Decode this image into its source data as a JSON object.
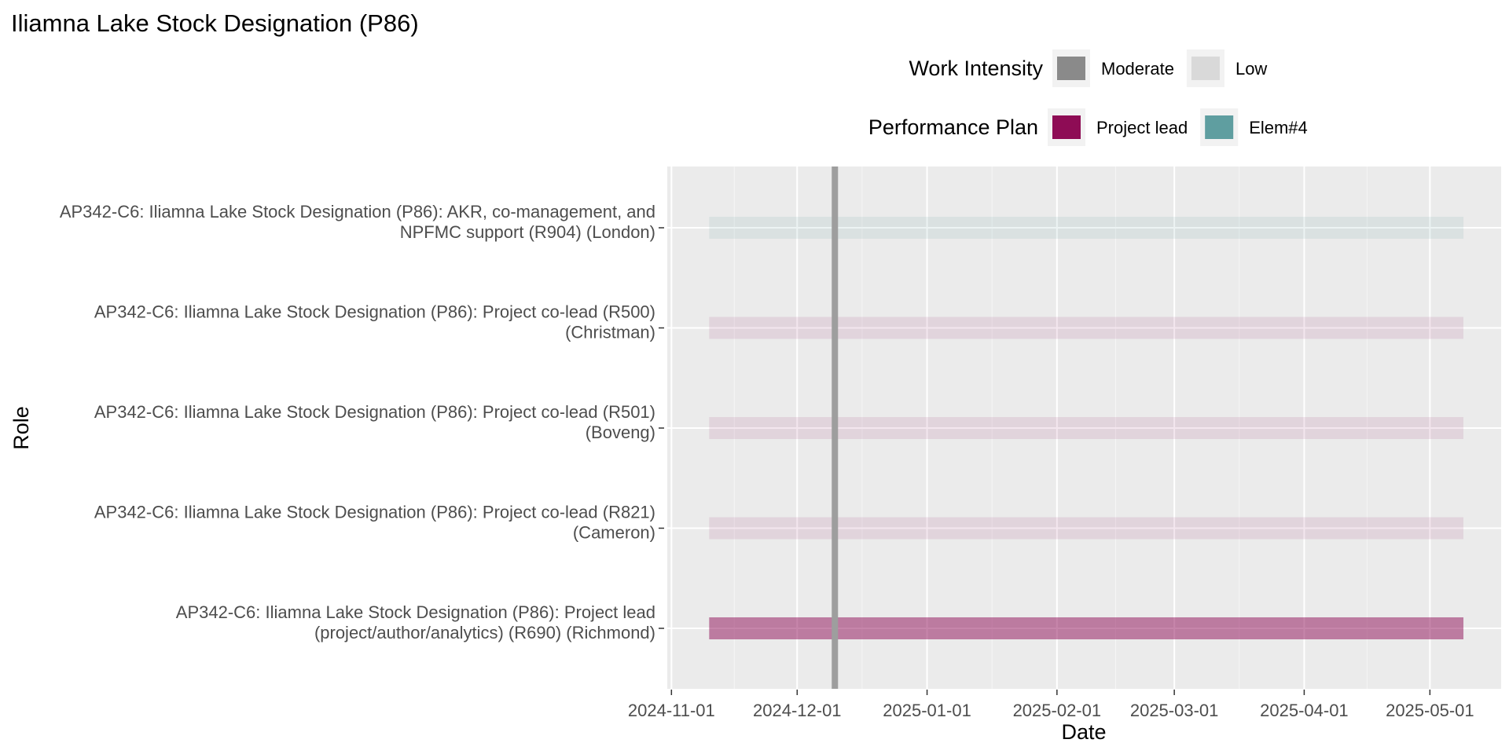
{
  "chart_data": {
    "type": "bar",
    "title": "Iliamna Lake Stock Designation (P86)",
    "xlabel": "Date",
    "ylabel": "Role",
    "x_type": "date",
    "xlim": [
      "2024-10-31",
      "2025-05-18"
    ],
    "x_ticks": [
      "2024-11-01",
      "2024-12-01",
      "2025-01-01",
      "2025-02-01",
      "2025-03-01",
      "2025-04-01",
      "2025-05-01"
    ],
    "reference_line": {
      "date": "2024-12-10",
      "color": "#9e9e9e"
    },
    "grid": true,
    "legend": {
      "placement": "top-right",
      "groups": [
        {
          "title": "Work Intensity",
          "items": [
            {
              "label": "Moderate",
              "color": "#8a8a8a"
            },
            {
              "label": "Low",
              "color": "#d9d9d9"
            }
          ]
        },
        {
          "title": "Performance Plan",
          "items": [
            {
              "label": "Project lead",
              "color": "#8e0c55"
            },
            {
              "label": "Elem#4",
              "color": "#5f9ea0"
            }
          ]
        }
      ]
    },
    "rows": [
      {
        "label_lines": [
          "AP342-C6: Iliamna Lake Stock Designation (P86): AKR, co-management, and",
          "NPFMC support (R904) (London)"
        ],
        "start": "2024-11-10",
        "end": "2025-05-09",
        "plan": "Elem#4",
        "intensity": "Low",
        "color": "#5f9ea0",
        "opacity": 0.12
      },
      {
        "label_lines": [
          "AP342-C6: Iliamna Lake Stock Designation (P86): Project co-lead (R500)",
          "(Christman)"
        ],
        "start": "2024-11-10",
        "end": "2025-05-09",
        "plan": "Project lead",
        "intensity": "Low",
        "color": "#8e0c55",
        "opacity": 0.1
      },
      {
        "label_lines": [
          "AP342-C6: Iliamna Lake Stock Designation (P86): Project co-lead (R501)",
          "(Boveng)"
        ],
        "start": "2024-11-10",
        "end": "2025-05-09",
        "plan": "Project lead",
        "intensity": "Low",
        "color": "#8e0c55",
        "opacity": 0.1
      },
      {
        "label_lines": [
          "AP342-C6: Iliamna Lake Stock Designation (P86): Project co-lead (R821)",
          "(Cameron)"
        ],
        "start": "2024-11-10",
        "end": "2025-05-09",
        "plan": "Project lead",
        "intensity": "Low",
        "color": "#8e0c55",
        "opacity": 0.1
      },
      {
        "label_lines": [
          "AP342-C6: Iliamna Lake Stock Designation (P86): Project lead",
          "(project/author/analytics) (R690) (Richmond)"
        ],
        "start": "2024-11-10",
        "end": "2025-05-09",
        "plan": "Project lead",
        "intensity": "Moderate",
        "color": "#8e0c55",
        "opacity": 0.5
      }
    ]
  }
}
